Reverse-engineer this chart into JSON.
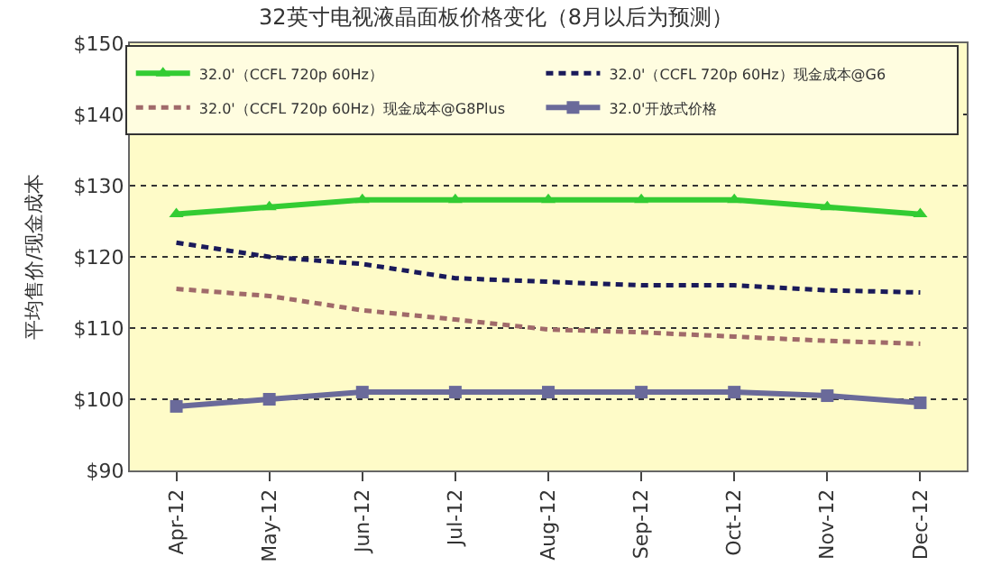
{
  "chart_data": {
    "type": "line",
    "title": "32英寸电视液晶面板价格变化（8月以后为预测）",
    "ylabel": "平均售价/现金成本",
    "categories": [
      "Apr-12",
      "May-12",
      "Jun-12",
      "Jul-12",
      "Aug-12",
      "Sep-12",
      "Oct-12",
      "Nov-12",
      "Dec-12"
    ],
    "ylim": [
      90,
      150
    ],
    "yticks": [
      {
        "value": 90,
        "label": "$90"
      },
      {
        "value": 100,
        "label": "$100"
      },
      {
        "value": 110,
        "label": "$110"
      },
      {
        "value": 120,
        "label": "$120"
      },
      {
        "value": 130,
        "label": "$130"
      },
      {
        "value": 140,
        "label": "$140"
      },
      {
        "value": 150,
        "label": "$150"
      }
    ],
    "grid": "y",
    "legend": "top right",
    "series": [
      {
        "name": "32.0'（CCFL 720p 60Hz）",
        "color": "#33cc33",
        "marker": "triangle",
        "line_style": "solid",
        "values": [
          126,
          127,
          128,
          128,
          128,
          128,
          128,
          127,
          126
        ]
      },
      {
        "name": "32.0'（CCFL 720p 60Hz）现金成本@G6",
        "color": "#1a1a5a",
        "marker": "none",
        "line_style": "dashed",
        "values": [
          122,
          120,
          119,
          117,
          116.5,
          116,
          116,
          115.3,
          115
        ]
      },
      {
        "name": "32.0'（CCFL 720p 60Hz）现金成本@G8Plus",
        "color": "#a06a6a",
        "marker": "none",
        "line_style": "dashed",
        "values": [
          115.5,
          114.5,
          112.5,
          111.2,
          109.8,
          109.4,
          108.8,
          108.2,
          107.8
        ]
      },
      {
        "name": "32.0'开放式价格",
        "color": "#6a6a9a",
        "marker": "square",
        "line_style": "solid",
        "values": [
          99,
          100,
          101,
          101,
          101,
          101,
          101,
          100.5,
          99.5
        ]
      }
    ]
  }
}
